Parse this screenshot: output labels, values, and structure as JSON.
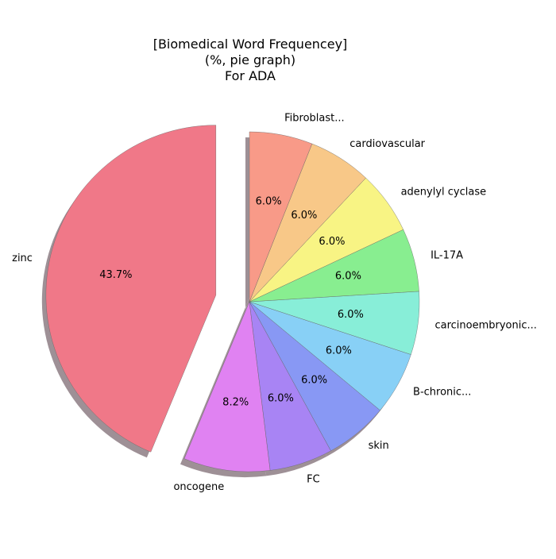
{
  "chart_data": {
    "type": "pie",
    "title": [
      "[Biomedical Word Frequencey]",
      "(%, pie graph)",
      "For ADA"
    ],
    "slices": [
      {
        "label": "zinc",
        "value": 43.7,
        "pct_label": "43.7%",
        "color": "#f07888",
        "exploded": true
      },
      {
        "label": "oncogene",
        "value": 8.2,
        "pct_label": "8.2%",
        "color": "#e082f2"
      },
      {
        "label": "FC",
        "value": 6.0,
        "pct_label": "6.0%",
        "color": "#a884f4"
      },
      {
        "label": "skin",
        "value": 6.0,
        "pct_label": "6.0%",
        "color": "#8898f4"
      },
      {
        "label": "B-chronic...",
        "value": 6.0,
        "pct_label": "6.0%",
        "color": "#88d0f6"
      },
      {
        "label": "carcinoembryonic...",
        "value": 6.0,
        "pct_label": "6.0%",
        "color": "#88eed8"
      },
      {
        "label": "IL-17A",
        "value": 6.0,
        "pct_label": "6.0%",
        "color": "#88ee90"
      },
      {
        "label": "adenylyl cyclase",
        "value": 6.0,
        "pct_label": "6.0%",
        "color": "#f8f484"
      },
      {
        "label": "cardiovascular",
        "value": 6.0,
        "pct_label": "6.0%",
        "color": "#f8c888"
      },
      {
        "label": "Fibroblast...",
        "value": 6.0,
        "pct_label": "6.0%",
        "color": "#f89a88"
      }
    ],
    "start_angle_deg": 90,
    "direction": "counterclockwise",
    "shadow": true
  }
}
